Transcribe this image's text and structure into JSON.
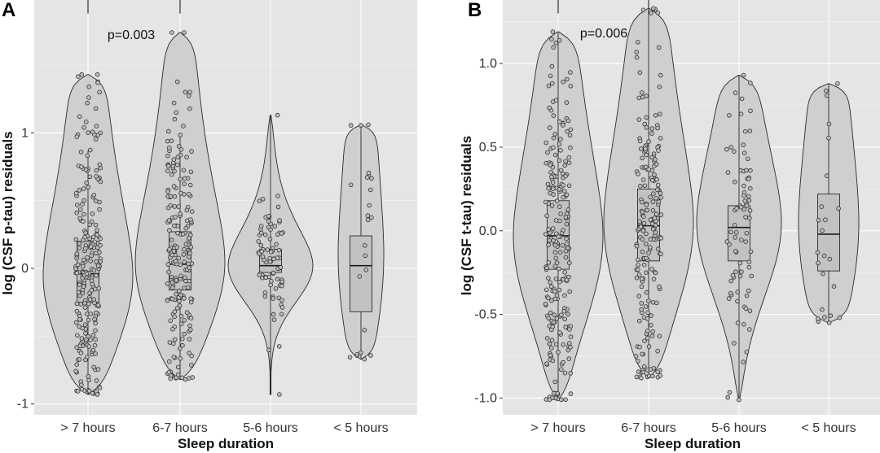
{
  "chart_data": [
    {
      "type": "violin",
      "panel": "A",
      "xlabel": "Sleep duration",
      "ylabel": "log (CSF p-tau) residuals",
      "categories": [
        "> 7 hours",
        "6-7 hours",
        "5-6 hours",
        "< 5 hours"
      ],
      "ylim": [
        -1.08,
        1.98
      ],
      "yticks": [
        -1,
        0,
        1
      ],
      "ytick_labels": [
        "-1",
        "0",
        "1"
      ],
      "annotation": {
        "text": "p=0.003",
        "from": 0,
        "to": 1,
        "y": 1.88
      },
      "groups": [
        {
          "min": -0.93,
          "max": 1.43,
          "q1": -0.25,
          "median": -0.04,
          "q3": 0.2,
          "wlo": -0.93,
          "whi": 0.87,
          "n": 230,
          "peak": -0.05,
          "outliers": [
            1.0,
            1.05,
            1.12,
            1.18,
            1.22,
            1.26,
            1.3,
            1.34,
            1.37,
            1.43
          ]
        },
        {
          "min": -0.82,
          "max": 1.74,
          "q1": -0.16,
          "median": 0.03,
          "q3": 0.27,
          "wlo": -0.82,
          "whi": 0.98,
          "n": 200,
          "peak": 0.05,
          "outliers": [
            1.05,
            1.1,
            1.15,
            1.22,
            1.3,
            1.74
          ]
        },
        {
          "min": -0.93,
          "max": 1.13,
          "q1": -0.03,
          "median": 0.02,
          "q3": 0.14,
          "wlo": -0.93,
          "whi": 1.13,
          "n": 80,
          "peak": 0.02,
          "outliers": []
        },
        {
          "min": -0.67,
          "max": 1.06,
          "q1": -0.32,
          "median": 0.02,
          "q3": 0.24,
          "wlo": -0.67,
          "whi": 1.06,
          "n": 22,
          "peak": 0.1,
          "outliers": []
        }
      ]
    },
    {
      "type": "violin",
      "panel": "B",
      "xlabel": "Sleep duration",
      "ylabel": "log (CSF t-tau) residuals",
      "categories": [
        "> 7 hours",
        "6-7 hours",
        "5-6 hours",
        "< 5 hours"
      ],
      "ylim": [
        -1.1,
        1.38
      ],
      "yticks": [
        -1.0,
        -0.5,
        0.0,
        0.5,
        1.0
      ],
      "ytick_labels": [
        "-1.0",
        "-0.5",
        "0.0",
        "0.5",
        "1.0"
      ],
      "annotation": {
        "text": "p=0.006",
        "from": 0,
        "to": 1,
        "y": 1.3
      },
      "groups": [
        {
          "min": -1.01,
          "max": 1.19,
          "q1": -0.23,
          "median": -0.03,
          "q3": 0.18,
          "wlo": -1.01,
          "whi": 1.19,
          "n": 230,
          "peak": -0.03,
          "outliers": []
        },
        {
          "min": -0.88,
          "max": 1.33,
          "q1": -0.18,
          "median": 0.03,
          "q3": 0.25,
          "wlo": -0.88,
          "whi": 1.33,
          "n": 200,
          "peak": 0.05,
          "outliers": []
        },
        {
          "min": -1.01,
          "max": 0.93,
          "q1": -0.18,
          "median": 0.02,
          "q3": 0.15,
          "wlo": -1.01,
          "whi": 0.93,
          "n": 80,
          "peak": 0.05,
          "outliers": []
        },
        {
          "min": -0.55,
          "max": 0.88,
          "q1": -0.24,
          "median": -0.02,
          "q3": 0.22,
          "wlo": -0.55,
          "whi": 0.88,
          "n": 22,
          "peak": 0.05,
          "outliers": []
        }
      ]
    }
  ]
}
